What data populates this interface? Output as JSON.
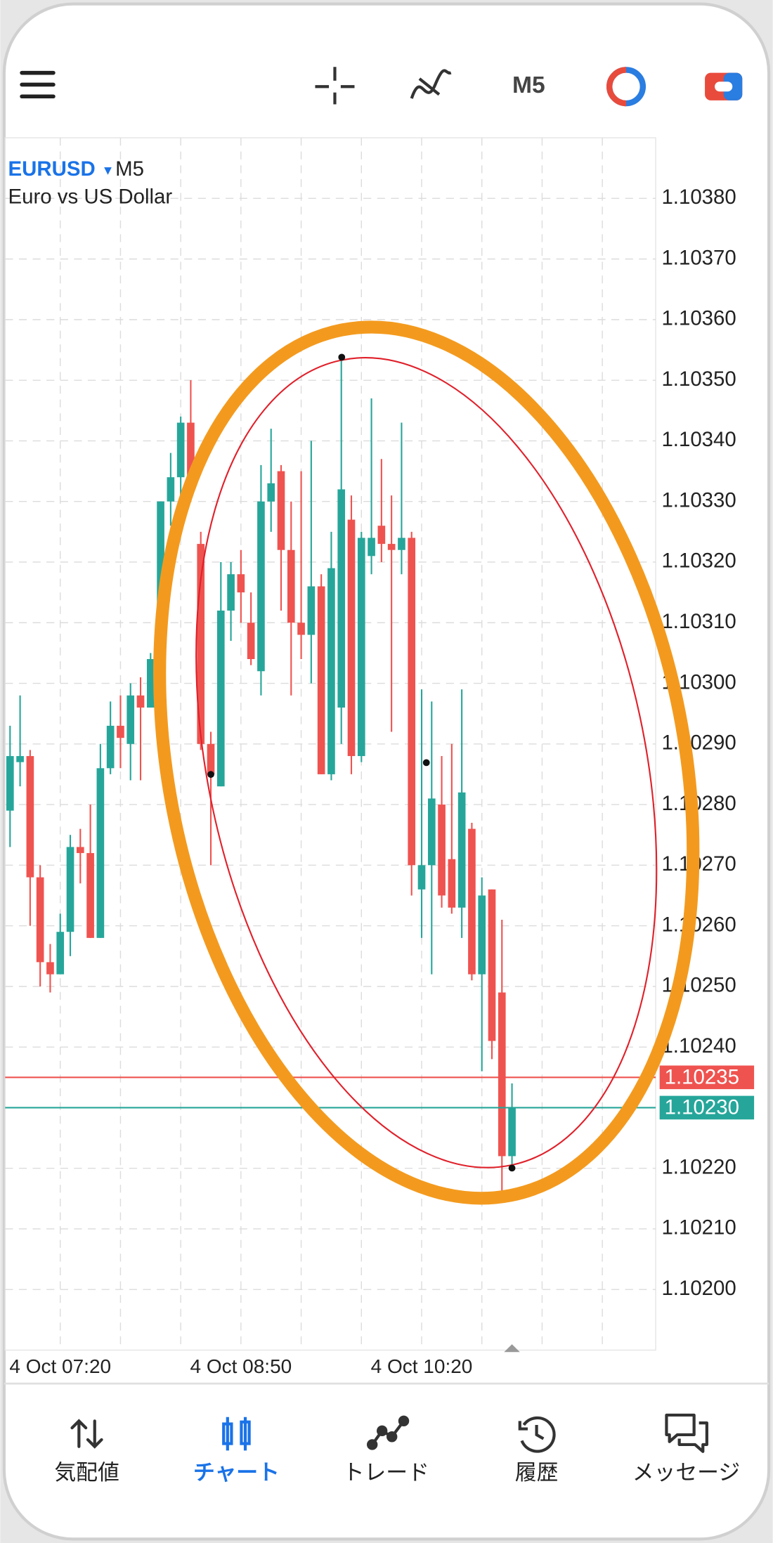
{
  "toolbar": {
    "timeframe": "M5"
  },
  "chart_data": {
    "type": "candlestick",
    "symbol": "EURUSD",
    "timeframe": "M5",
    "description": "Euro vs US Dollar",
    "categories": [
      null,
      null,
      null,
      null,
      null,
      "4 Oct 07:20",
      null,
      null,
      null,
      null,
      null,
      null,
      null,
      null,
      null,
      null,
      null,
      null,
      null,
      null,
      null,
      null,
      null,
      "4 Oct 08:50",
      null,
      null,
      null,
      null,
      null,
      null,
      null,
      null,
      null,
      null,
      null,
      null,
      null,
      null,
      null,
      null,
      null,
      "4 Oct 10:20",
      null,
      null,
      null,
      null,
      null,
      null,
      null,
      null,
      null
    ],
    "open": [
      1.10279,
      1.10287,
      1.10288,
      1.10268,
      1.10254,
      1.10252,
      1.10259,
      1.10273,
      1.10272,
      1.10258,
      1.10286,
      1.10293,
      1.1029,
      1.10298,
      1.10296,
      1.10304,
      1.1033,
      1.10334,
      1.10343,
      1.10323,
      1.1029,
      1.10283,
      1.10312,
      1.10318,
      1.1031,
      1.10302,
      1.1033,
      1.10335,
      1.10322,
      1.1031,
      1.10308,
      1.10316,
      1.10285,
      1.10296,
      1.10327,
      1.10288,
      1.10321,
      1.10326,
      1.10323,
      1.10322,
      1.10324,
      1.10266,
      1.1027,
      1.1028,
      1.10271,
      1.10263,
      1.10276,
      1.10252,
      1.10266,
      1.10249,
      1.10222
    ],
    "high": [
      1.10293,
      1.10298,
      1.10289,
      1.1027,
      1.10257,
      1.10262,
      1.10275,
      1.10276,
      1.1028,
      1.1029,
      1.10297,
      1.10298,
      1.103,
      1.10301,
      1.10305,
      1.1033,
      1.10338,
      1.10344,
      1.1035,
      1.10325,
      1.10292,
      1.1032,
      1.1032,
      1.10322,
      1.10315,
      1.10336,
      1.10342,
      1.10336,
      1.1033,
      1.10335,
      1.1034,
      1.10318,
      1.10325,
      1.10354,
      1.10331,
      1.10325,
      1.10347,
      1.10337,
      1.10331,
      1.10343,
      1.10325,
      1.10299,
      1.10297,
      1.10288,
      1.1029,
      1.10299,
      1.10277,
      1.10268,
      1.10266,
      1.10261,
      1.10234
    ],
    "low": [
      1.10273,
      1.10283,
      1.1026,
      1.1025,
      1.10249,
      1.10252,
      1.10255,
      1.10267,
      1.10258,
      1.10258,
      1.10285,
      1.10286,
      1.10284,
      1.10284,
      1.10296,
      1.103,
      1.10326,
      1.10328,
      1.10331,
      1.10289,
      1.1027,
      1.10283,
      1.10307,
      1.1031,
      1.10303,
      1.10298,
      1.10325,
      1.10312,
      1.10298,
      1.10304,
      1.103,
      1.10285,
      1.10284,
      1.1029,
      1.10285,
      1.10287,
      1.10318,
      1.1032,
      1.10292,
      1.10318,
      1.10265,
      1.10258,
      1.10252,
      1.10263,
      1.10262,
      1.10258,
      1.10251,
      1.10236,
      1.10238,
      1.10215,
      1.1022
    ],
    "close": [
      1.10288,
      1.10288,
      1.10268,
      1.10254,
      1.10252,
      1.10259,
      1.10273,
      1.10272,
      1.10258,
      1.10286,
      1.10293,
      1.10291,
      1.10298,
      1.10296,
      1.10304,
      1.1033,
      1.10334,
      1.10343,
      1.10333,
      1.1029,
      1.10285,
      1.10312,
      1.10318,
      1.10315,
      1.10304,
      1.1033,
      1.10333,
      1.10322,
      1.1031,
      1.10308,
      1.10316,
      1.10285,
      1.10319,
      1.10332,
      1.10288,
      1.10324,
      1.10324,
      1.10323,
      1.10322,
      1.10324,
      1.1027,
      1.1027,
      1.10281,
      1.10265,
      1.10263,
      1.10282,
      1.10252,
      1.10265,
      1.10241,
      1.10222,
      1.1023
    ],
    "up_color": "#26a69a",
    "down_color": "#ef5350",
    "ask": {
      "value": 1.10235,
      "label": "1.10235",
      "color": "#ef5350"
    },
    "bid": {
      "value": 1.1023,
      "label": "1.10230",
      "color": "#26a69a"
    },
    "ylim": [
      1.1019,
      1.1039
    ],
    "yticks": [
      {
        "value": 1.102,
        "label": "1.10200"
      },
      {
        "value": 1.1021,
        "label": "1.10210"
      },
      {
        "value": 1.1022,
        "label": "1.10220"
      },
      {
        "value": 1.1023,
        "label": "1.10230"
      },
      {
        "value": 1.1024,
        "label": "1.10240"
      },
      {
        "value": 1.1025,
        "label": "1.10250"
      },
      {
        "value": 1.1026,
        "label": "1.10260"
      },
      {
        "value": 1.1027,
        "label": "1.10270"
      },
      {
        "value": 1.1028,
        "label": "1.10280"
      },
      {
        "value": 1.1029,
        "label": "1.10290"
      },
      {
        "value": 1.103,
        "label": "1.10300"
      },
      {
        "value": 1.1031,
        "label": "1.10310"
      },
      {
        "value": 1.1032,
        "label": "1.10320"
      },
      {
        "value": 1.1033,
        "label": "1.10330"
      },
      {
        "value": 1.1034,
        "label": "1.10340"
      },
      {
        "value": 1.1035,
        "label": "1.10350"
      },
      {
        "value": 1.1036,
        "label": "1.10360"
      },
      {
        "value": 1.1037,
        "label": "1.10370"
      },
      {
        "value": 1.1038,
        "label": "1.10380"
      }
    ],
    "grid": true
  },
  "nav": {
    "items": [
      "気配値",
      "チャート",
      "トレード",
      "履歴",
      "メッセージ"
    ],
    "active": 1
  }
}
